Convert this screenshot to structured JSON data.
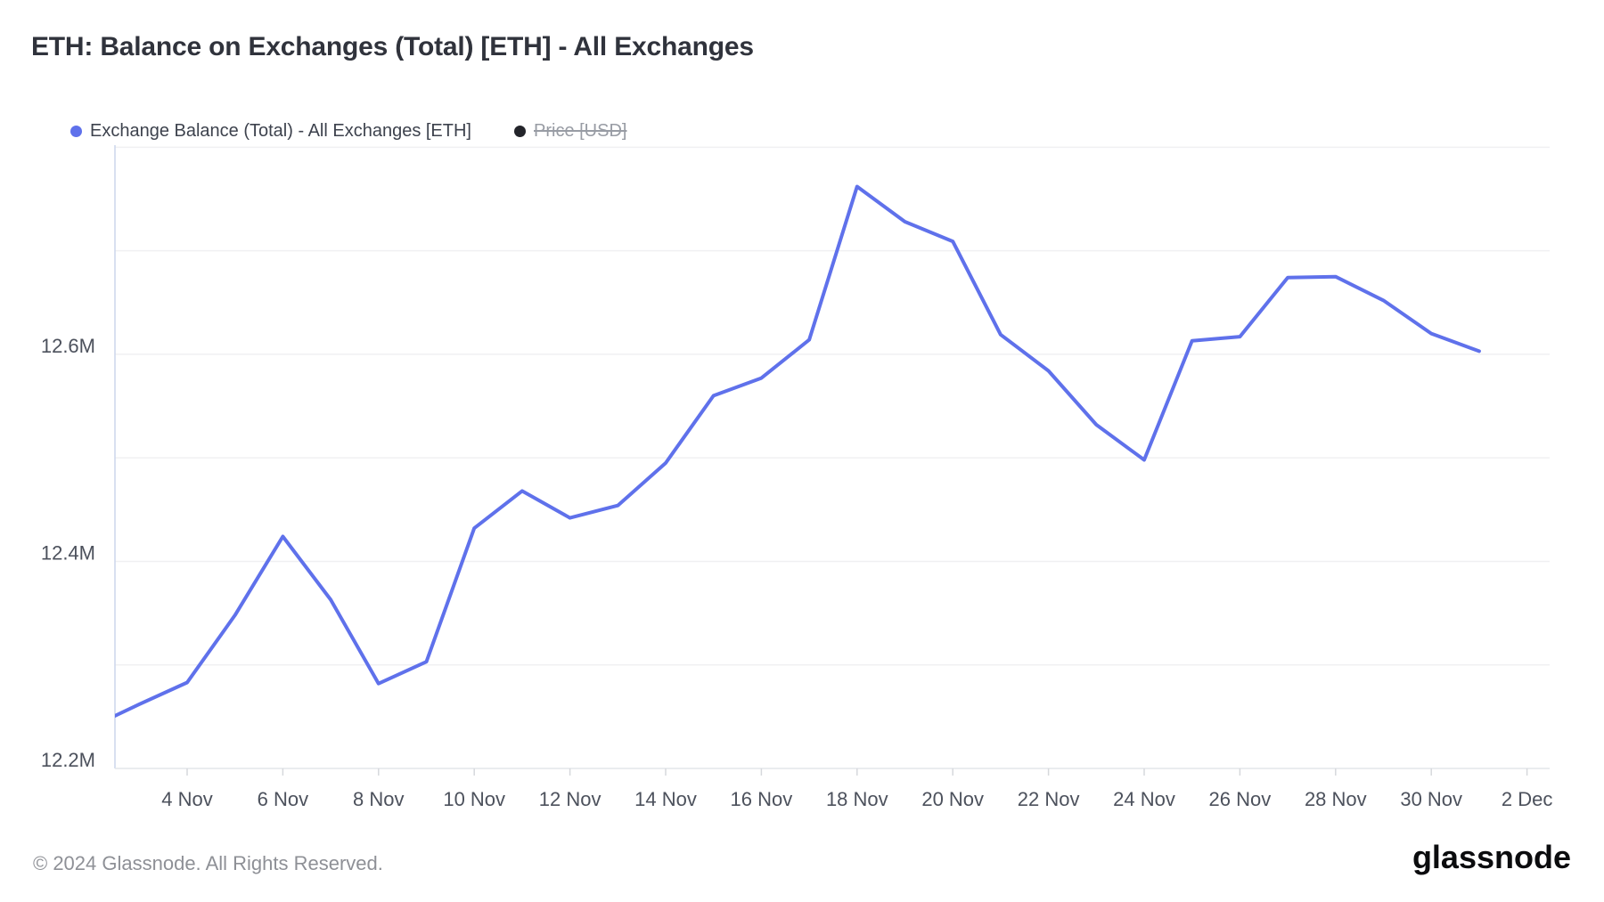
{
  "header": {
    "title": "ETH: Balance on Exchanges (Total) [ETH] - All Exchanges"
  },
  "legend": {
    "items": [
      {
        "label": "Exchange Balance (Total) - All Exchanges [ETH]",
        "color": "#5F71EB",
        "disabled": false
      },
      {
        "label": "Price [USD]",
        "color": "#23242A",
        "disabled": true
      }
    ]
  },
  "footer": {
    "copyright": "© 2024 Glassnode. All Rights Reserved.",
    "logo": "glassnode"
  },
  "colors": {
    "series_blue": "#5F71EB",
    "gridline": "#f0f0f2",
    "y_axis_line": "#ccd6eb",
    "x_axis_line": "#e4e6ea",
    "tick": "#d6d8dc",
    "axis_label": "#4c515c"
  },
  "chart_data": {
    "type": "line",
    "title": "ETH: Balance on Exchanges (Total) [ETH] - All Exchanges",
    "legend_position": "top-left",
    "grid": "horizontal-only",
    "ylabel": "",
    "y_unit": "million ETH",
    "ylim": [
      12.2,
      12.802
    ],
    "gridline_step": 0.1,
    "y_ticks": [
      "12.2M",
      "12.4M",
      "12.6M"
    ],
    "y_tick_values": [
      12.2,
      12.4,
      12.6
    ],
    "x_tick_labels": [
      "4 Nov",
      "6 Nov",
      "8 Nov",
      "10 Nov",
      "12 Nov",
      "14 Nov",
      "16 Nov",
      "18 Nov",
      "20 Nov",
      "22 Nov",
      "24 Nov",
      "26 Nov",
      "28 Nov",
      "30 Nov",
      "2 Dec"
    ],
    "x_tick_day_indices": [
      2,
      4,
      6,
      8,
      10,
      12,
      14,
      16,
      18,
      20,
      22,
      24,
      26,
      28,
      30
    ],
    "disabled_series": [
      "Price [USD]"
    ],
    "series": [
      {
        "name": "Exchange Balance (Total) - All Exchanges [ETH]",
        "color": "#5F71EB",
        "dates": [
          "2 Nov",
          "3 Nov",
          "4 Nov",
          "5 Nov",
          "6 Nov",
          "7 Nov",
          "8 Nov",
          "9 Nov",
          "10 Nov",
          "11 Nov",
          "12 Nov",
          "13 Nov",
          "14 Nov",
          "15 Nov",
          "16 Nov",
          "17 Nov",
          "18 Nov",
          "19 Nov",
          "20 Nov",
          "21 Nov",
          "22 Nov",
          "23 Nov",
          "24 Nov",
          "25 Nov",
          "26 Nov",
          "27 Nov",
          "28 Nov",
          "29 Nov",
          "30 Nov",
          "1 Dec"
        ],
        "values_m": [
          12.24,
          12.262,
          12.283,
          12.348,
          12.424,
          12.363,
          12.282,
          12.303,
          12.432,
          12.468,
          12.442,
          12.454,
          12.495,
          12.56,
          12.577,
          12.614,
          12.762,
          12.728,
          12.709,
          12.619,
          12.584,
          12.532,
          12.498,
          12.613,
          12.617,
          12.674,
          12.675,
          12.652,
          12.62,
          12.603
        ]
      }
    ]
  }
}
